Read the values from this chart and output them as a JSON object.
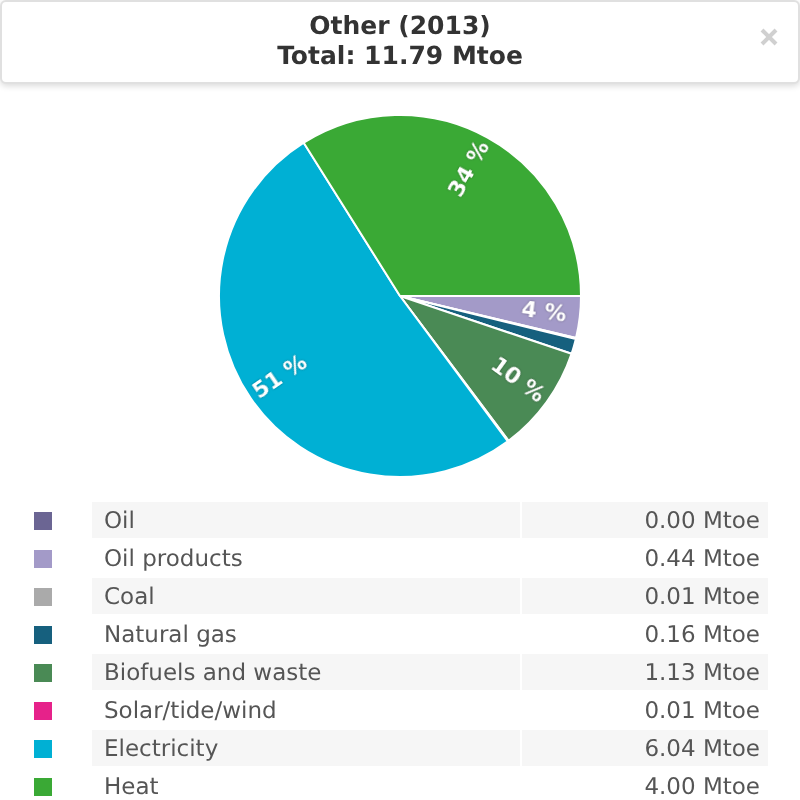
{
  "chart_data": {
    "type": "pie",
    "title": "Other (2013)",
    "subtitle": "Total: 11.79 Mtoe",
    "categories": [
      "Oil",
      "Oil products",
      "Coal",
      "Natural gas",
      "Biofuels and waste",
      "Solar/tide/wind",
      "Electricity",
      "Heat"
    ],
    "values": [
      0.0,
      0.44,
      0.01,
      0.16,
      1.13,
      0.01,
      6.04,
      4.0
    ],
    "colors": [
      "#6b6593",
      "#a39ac8",
      "#aaaaaa",
      "#16607e",
      "#4a8a55",
      "#e6228a",
      "#00b0d4",
      "#3aa935"
    ],
    "value_labels": [
      "0.00 Mtoe",
      "0.44 Mtoe",
      "0.01 Mtoe",
      "0.16 Mtoe",
      "1.13 Mtoe",
      "0.01 Mtoe",
      "6.04 Mtoe",
      "4.00 Mtoe"
    ],
    "annotations": [
      {
        "text": "4 %",
        "x": "Oil products"
      },
      {
        "text": "10 %",
        "x": "Biofuels and waste"
      },
      {
        "text": "51 %",
        "x": "Electricity"
      },
      {
        "text": "34 %",
        "x": "Heat"
      }
    ],
    "legend": "bottom"
  }
}
